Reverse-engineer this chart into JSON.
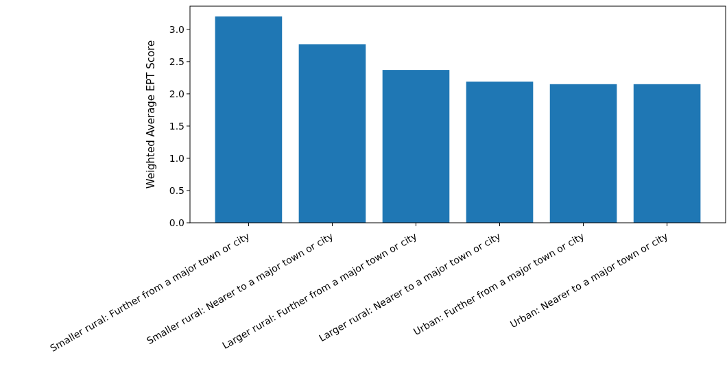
{
  "chart_data": {
    "type": "bar",
    "ylabel": "Weighted Average EPT Score",
    "categories": [
      "Smaller rural: Further from a major town or city",
      "Smaller rural: Nearer to a major town or city",
      "Larger rural: Further from a major town or city",
      "Larger rural: Nearer to a major town or city",
      "Urban: Further from a major town or city",
      "Urban: Nearer to a major town or city"
    ],
    "values": [
      3.2,
      2.77,
      2.37,
      2.19,
      2.15,
      2.15
    ],
    "color": "#1f77b4",
    "ylim": [
      0,
      3.36
    ],
    "yticks": [
      {
        "value": 0,
        "label": "0.0"
      },
      {
        "value": 0.5,
        "label": "0.5"
      },
      {
        "value": 1,
        "label": "1.0"
      },
      {
        "value": 1.5,
        "label": "1.5"
      },
      {
        "value": 2,
        "label": "2.0"
      },
      {
        "value": 2.5,
        "label": "2.5"
      },
      {
        "value": 3,
        "label": "3.0"
      }
    ],
    "grid": false
  }
}
